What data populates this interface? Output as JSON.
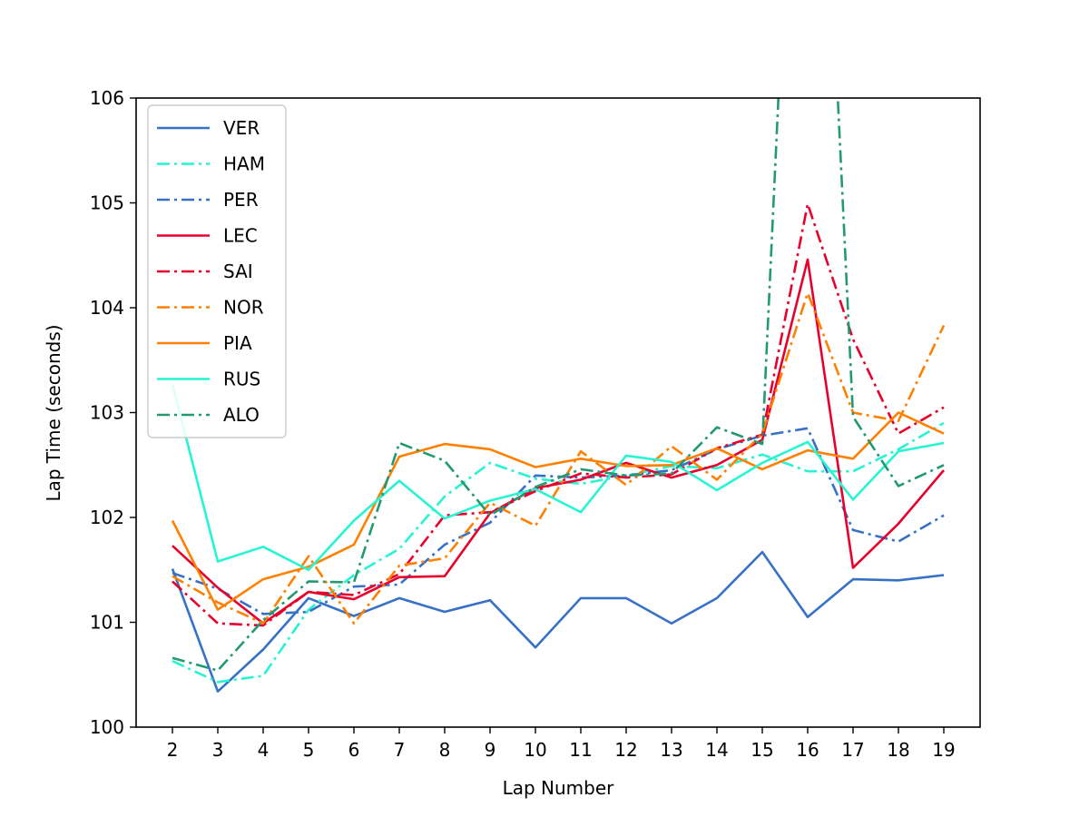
{
  "chart_data": {
    "type": "line",
    "xlabel": "Lap Number",
    "ylabel": "Lap Time (seconds)",
    "xlim": [
      1.2,
      19.8
    ],
    "ylim": [
      100,
      106
    ],
    "xticks": [
      2,
      3,
      4,
      5,
      6,
      7,
      8,
      9,
      10,
      11,
      12,
      13,
      14,
      15,
      16,
      17,
      18,
      19
    ],
    "yticks": [
      100,
      101,
      102,
      103,
      104,
      105,
      106
    ],
    "grid": false,
    "legend": "top-left",
    "x": [
      2,
      3,
      4,
      5,
      6,
      7,
      8,
      9,
      10,
      11,
      12,
      13,
      14,
      15,
      16,
      17,
      18,
      19
    ],
    "series": [
      {
        "name": "VER",
        "color": "#3671c6",
        "style": "solid",
        "values": [
          101.51,
          100.34,
          100.74,
          101.23,
          101.06,
          101.23,
          101.1,
          101.21,
          100.76,
          101.23,
          101.23,
          100.99,
          101.23,
          101.67,
          101.05,
          101.41,
          101.4,
          101.45
        ]
      },
      {
        "name": "HAM",
        "color": "#27f4d2",
        "style": "dashdot",
        "values": [
          100.63,
          100.43,
          100.49,
          101.12,
          101.45,
          101.7,
          102.2,
          102.52,
          102.37,
          102.32,
          102.4,
          102.49,
          102.47,
          102.6,
          102.44,
          102.44,
          102.65,
          102.9
        ]
      },
      {
        "name": "PER",
        "color": "#3671c6",
        "style": "dashdot",
        "values": [
          101.47,
          101.32,
          101.08,
          101.1,
          101.34,
          101.36,
          101.74,
          101.95,
          102.4,
          102.38,
          102.4,
          102.45,
          102.65,
          102.78,
          102.85,
          101.88,
          101.77,
          102.02
        ]
      },
      {
        "name": "LEC",
        "color": "#e8002d",
        "style": "solid",
        "values": [
          101.73,
          101.33,
          100.99,
          101.29,
          101.22,
          101.43,
          101.44,
          102.04,
          102.28,
          102.36,
          102.52,
          102.38,
          102.5,
          102.74,
          104.46,
          101.52,
          101.94,
          102.45
        ]
      },
      {
        "name": "SAI",
        "color": "#e8002d",
        "style": "dashdot",
        "values": [
          101.39,
          100.99,
          100.97,
          101.29,
          101.26,
          101.46,
          102.02,
          102.05,
          102.25,
          102.42,
          102.38,
          102.41,
          102.66,
          102.79,
          104.99,
          103.7,
          102.8,
          103.05
        ]
      },
      {
        "name": "NOR",
        "color": "#ff8000",
        "style": "dashdot",
        "values": [
          101.44,
          101.19,
          100.99,
          101.63,
          100.99,
          101.54,
          101.61,
          102.14,
          101.92,
          102.63,
          102.31,
          102.68,
          102.36,
          102.8,
          104.14,
          103.0,
          102.92,
          103.83
        ]
      },
      {
        "name": "PIA",
        "color": "#ff8000",
        "style": "solid",
        "values": [
          101.97,
          101.12,
          101.41,
          101.53,
          101.74,
          102.58,
          102.7,
          102.65,
          102.48,
          102.56,
          102.49,
          102.5,
          102.66,
          102.46,
          102.64,
          102.56,
          103.0,
          102.8
        ]
      },
      {
        "name": "RUS",
        "color": "#27f4d2",
        "style": "solid",
        "values": [
          103.27,
          101.58,
          101.72,
          101.5,
          101.97,
          102.35,
          101.99,
          102.16,
          102.27,
          102.05,
          102.59,
          102.53,
          102.26,
          102.52,
          102.72,
          102.17,
          102.63,
          102.71
        ]
      },
      {
        "name": "ALO",
        "color": "#229971",
        "style": "dashdot",
        "values": [
          100.66,
          100.54,
          101.02,
          101.39,
          101.38,
          102.71,
          102.54,
          102.02,
          102.29,
          102.46,
          102.4,
          102.42,
          102.86,
          102.7,
          112.0,
          102.96,
          102.3,
          102.5
        ]
      }
    ]
  }
}
